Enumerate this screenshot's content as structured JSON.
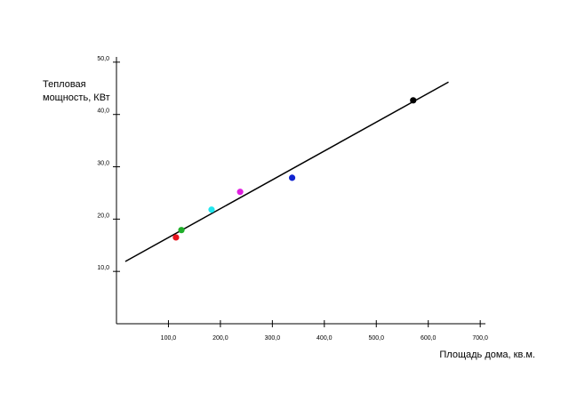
{
  "chart_data": {
    "type": "scatter",
    "ylabel": [
      "Тепловая",
      "мощность, КВт"
    ],
    "xlabel": "Площадь дома, кв.м.",
    "x": [
      114.5,
      125,
      183,
      238,
      338,
      571
    ],
    "y": [
      16.5,
      17.9,
      21.8,
      25.2,
      27.9,
      42.7
    ],
    "colors": [
      "#e8141e",
      "#1fae2a",
      "#22e6ee",
      "#e020e0",
      "#1024d0",
      "#000000"
    ],
    "trendline": {
      "x": [
        17,
        639
      ],
      "y": [
        11.9,
        46.2
      ],
      "color": "#000000"
    },
    "xlim": [
      0,
      710
    ],
    "ylim": [
      0,
      51
    ],
    "xticks": [
      {
        "value": 100,
        "label": "100,0"
      },
      {
        "value": 200,
        "label": "200,0"
      },
      {
        "value": 300,
        "label": "300,0"
      },
      {
        "value": 400,
        "label": "400,0"
      },
      {
        "value": 500,
        "label": "500,0"
      },
      {
        "value": 600,
        "label": "600,0"
      },
      {
        "value": 700,
        "label": "700,0"
      }
    ],
    "yticks": [
      {
        "value": 10,
        "label": "10,0"
      },
      {
        "value": 20,
        "label": "20,0"
      },
      {
        "value": 30,
        "label": "30,0"
      },
      {
        "value": 40,
        "label": "40,0"
      },
      {
        "value": 50,
        "label": "50,0"
      }
    ]
  }
}
